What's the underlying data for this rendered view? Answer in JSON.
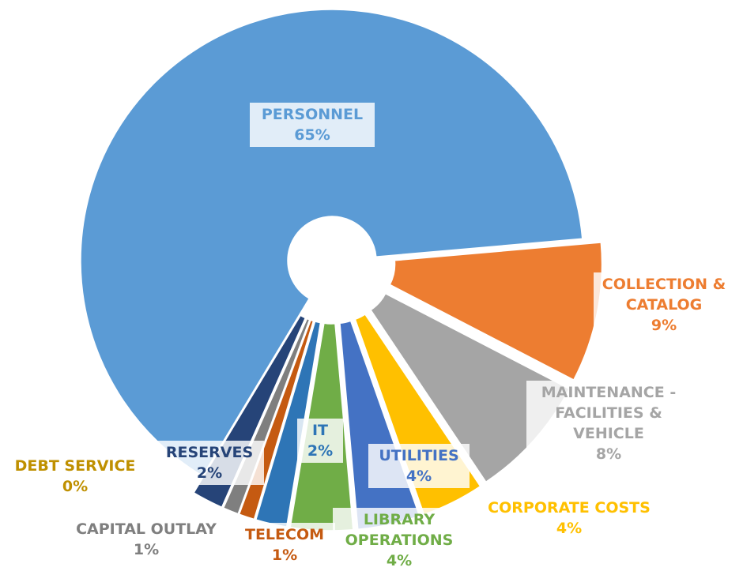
{
  "chart_data": {
    "type": "doughnut",
    "categories": [
      "PERSONNEL",
      "COLLECTION & CATALOG",
      "MAINTENANCE - FACILITIES & VEHICLE",
      "CORPORATE COSTS",
      "UTILITIES",
      "LIBRARY OPERATIONS",
      "IT",
      "TELECOM",
      "CAPITAL OUTLAY",
      "DEBT SERVICE",
      "RESERVES"
    ],
    "values": [
      65,
      9,
      8,
      4,
      4,
      4,
      2,
      1,
      1,
      0,
      2
    ],
    "value_labels": [
      "65%",
      "9%",
      "8%",
      "4%",
      "4%",
      "4%",
      "2%",
      "1%",
      "1%",
      "0%",
      "2%"
    ],
    "colors": [
      "#5b9bd5",
      "#ed7d31",
      "#a5a5a5",
      "#ffc000",
      "#4472c4",
      "#70ad47",
      "#2e75b6",
      "#c55a11",
      "#7f7f7f",
      "#bf9000",
      "#264478"
    ],
    "label_colors": [
      "#5b9bd5",
      "#ed7d31",
      "#a5a5a5",
      "#ffc000",
      "#4472c4",
      "#70ad47",
      "#2e75b6",
      "#c55a11",
      "#7f7f7f",
      "#bf9000",
      "#264478"
    ]
  }
}
